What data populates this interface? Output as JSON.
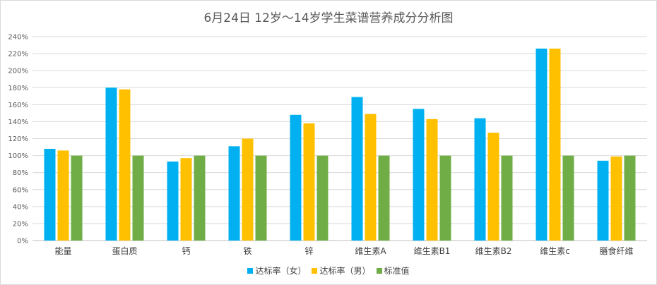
{
  "chart_data": {
    "type": "bar",
    "title": "6月24日 12岁～14岁学生菜谱营养成分分析图",
    "xlabel": "",
    "ylabel": "",
    "categories": [
      "能量",
      "蛋白质",
      "钙",
      "铁",
      "锌",
      "维生素A",
      "维生素B1",
      "维生素B2",
      "维生素c",
      "膳食纤维"
    ],
    "series": [
      {
        "name": "达标率（女）",
        "color": "#00b0f0",
        "values": [
          108,
          180,
          93,
          111,
          148,
          169,
          155,
          144,
          226,
          94
        ]
      },
      {
        "name": "达标率（男）",
        "color": "#ffc000",
        "values": [
          106,
          178,
          97,
          120,
          138,
          149,
          143,
          127,
          226,
          99
        ]
      },
      {
        "name": "标准值",
        "color": "#70ad47",
        "values": [
          100,
          100,
          100,
          100,
          100,
          100,
          100,
          100,
          100,
          100
        ]
      }
    ],
    "ylim": [
      0,
      240
    ],
    "yticks": [
      "0%",
      "20%",
      "40%",
      "60%",
      "80%",
      "100%",
      "120%",
      "140%",
      "160%",
      "180%",
      "200%",
      "220%",
      "240%"
    ],
    "grid": true,
    "legend_position": "bottom"
  }
}
